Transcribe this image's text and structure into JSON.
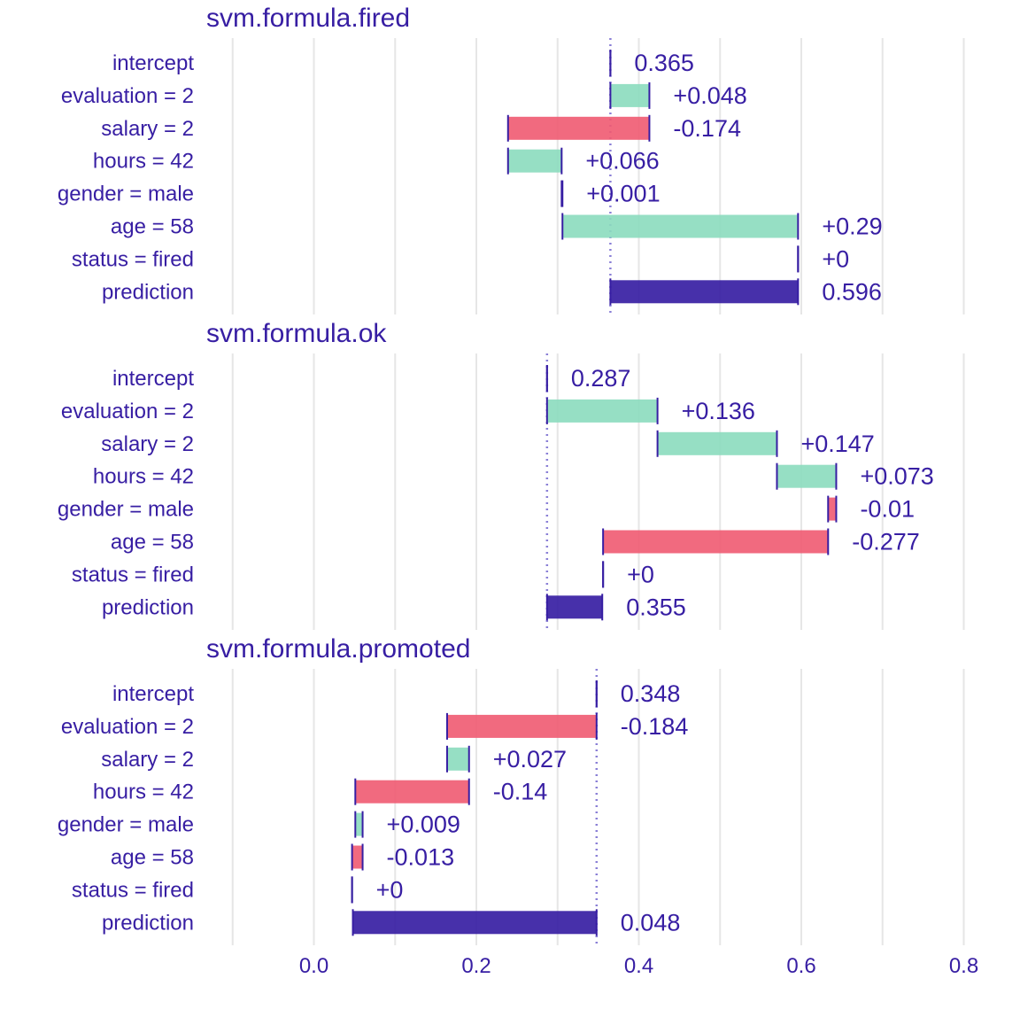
{
  "colors": {
    "positive": "#8bdcbe",
    "negative": "#f05a71",
    "prediction": "#371ea3",
    "text": "#371ea3",
    "grid": "#e6e6e6",
    "connector": "#371ea3"
  },
  "chart_data": {
    "type": "bar",
    "subtype": "break-down waterfall",
    "xlim": [
      -0.1,
      0.8
    ],
    "x_ticks": [
      0.0,
      0.2,
      0.4,
      0.6,
      0.8
    ],
    "x_tick_labels": [
      "0.0",
      "0.2",
      "0.4",
      "0.6",
      "0.8"
    ],
    "grid": true,
    "panels": [
      {
        "title": "svm.formula.fired",
        "rows": [
          {
            "label": "intercept",
            "start": 0.365,
            "end": 0.365,
            "value_label": "0.365",
            "kind": "intercept"
          },
          {
            "label": "evaluation = 2",
            "start": 0.365,
            "end": 0.413,
            "value_label": "+0.048",
            "kind": "positive"
          },
          {
            "label": "salary = 2",
            "start": 0.413,
            "end": 0.239,
            "value_label": "-0.174",
            "kind": "negative"
          },
          {
            "label": "hours = 42",
            "start": 0.239,
            "end": 0.305,
            "value_label": "+0.066",
            "kind": "positive"
          },
          {
            "label": "gender = male",
            "start": 0.305,
            "end": 0.306,
            "value_label": "+0.001",
            "kind": "positive"
          },
          {
            "label": "age = 58",
            "start": 0.306,
            "end": 0.596,
            "value_label": "+0.29",
            "kind": "positive"
          },
          {
            "label": "status = fired",
            "start": 0.596,
            "end": 0.596,
            "value_label": "+0",
            "kind": "positive"
          },
          {
            "label": "prediction",
            "start": 0.365,
            "end": 0.596,
            "value_label": "0.596",
            "kind": "prediction"
          }
        ]
      },
      {
        "title": "svm.formula.ok",
        "rows": [
          {
            "label": "intercept",
            "start": 0.287,
            "end": 0.287,
            "value_label": "0.287",
            "kind": "intercept"
          },
          {
            "label": "evaluation = 2",
            "start": 0.287,
            "end": 0.423,
            "value_label": "+0.136",
            "kind": "positive"
          },
          {
            "label": "salary = 2",
            "start": 0.423,
            "end": 0.57,
            "value_label": "+0.147",
            "kind": "positive"
          },
          {
            "label": "hours = 42",
            "start": 0.57,
            "end": 0.643,
            "value_label": "+0.073",
            "kind": "positive"
          },
          {
            "label": "gender = male",
            "start": 0.643,
            "end": 0.633,
            "value_label": "-0.01",
            "kind": "negative"
          },
          {
            "label": "age = 58",
            "start": 0.633,
            "end": 0.356,
            "value_label": "-0.277",
            "kind": "negative"
          },
          {
            "label": "status = fired",
            "start": 0.356,
            "end": 0.356,
            "value_label": "+0",
            "kind": "positive"
          },
          {
            "label": "prediction",
            "start": 0.287,
            "end": 0.355,
            "value_label": "0.355",
            "kind": "prediction"
          }
        ]
      },
      {
        "title": "svm.formula.promoted",
        "rows": [
          {
            "label": "intercept",
            "start": 0.348,
            "end": 0.348,
            "value_label": "0.348",
            "kind": "intercept"
          },
          {
            "label": "evaluation = 2",
            "start": 0.348,
            "end": 0.164,
            "value_label": "-0.184",
            "kind": "negative"
          },
          {
            "label": "salary = 2",
            "start": 0.164,
            "end": 0.191,
            "value_label": "+0.027",
            "kind": "positive"
          },
          {
            "label": "hours = 42",
            "start": 0.191,
            "end": 0.051,
            "value_label": "-0.14",
            "kind": "negative"
          },
          {
            "label": "gender = male",
            "start": 0.051,
            "end": 0.06,
            "value_label": "+0.009",
            "kind": "positive"
          },
          {
            "label": "age = 58",
            "start": 0.06,
            "end": 0.047,
            "value_label": "-0.013",
            "kind": "negative"
          },
          {
            "label": "status = fired",
            "start": 0.047,
            "end": 0.047,
            "value_label": "+0",
            "kind": "positive"
          },
          {
            "label": "prediction",
            "start": 0.348,
            "end": 0.048,
            "value_label": "0.048",
            "kind": "prediction"
          }
        ]
      }
    ]
  }
}
